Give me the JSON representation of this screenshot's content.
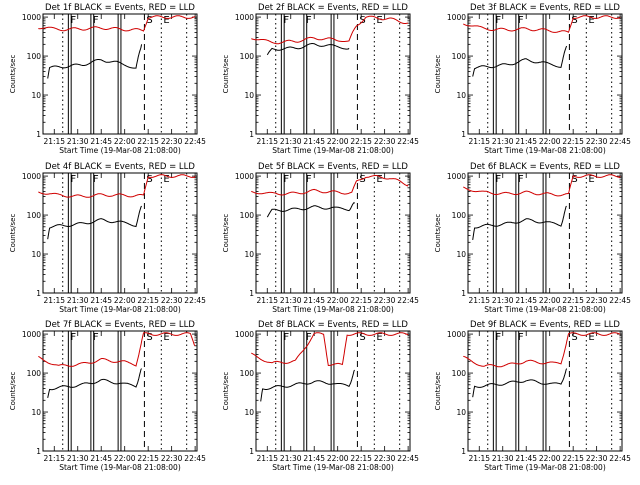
{
  "chart_data": [
    {
      "type": "line",
      "title": "Det 1f BLACK = Events, RED = LLD",
      "xlabel": "Start Time (19-Mar-08 21:08:00)",
      "ylabel": "Counts/sec",
      "x_ticks": [
        "21:15",
        "21:30",
        "21:45",
        "22:00",
        "22:15",
        "22:30",
        "22:45"
      ],
      "y_ticks": [
        "1",
        "10",
        "100",
        "1000"
      ],
      "ylim": [
        1,
        1200
      ],
      "y_scale": "log",
      "marker_labels": [
        "F",
        "F",
        "S",
        "E"
      ],
      "series": [
        {
          "color": "#000000",
          "values": [
            [
              21.18,
              25
            ],
            [
              21.2,
              50
            ],
            [
              21.4,
              55
            ],
            [
              21.55,
              60
            ],
            [
              21.75,
              80
            ],
            [
              21.95,
              65
            ],
            [
              22.12,
              50
            ],
            [
              22.18,
              200
            ]
          ]
        },
        {
          "color": "#d00000",
          "values": [
            [
              21.08,
              550
            ],
            [
              21.3,
              480
            ],
            [
              21.55,
              500
            ],
            [
              21.75,
              530
            ],
            [
              22.0,
              480
            ],
            [
              22.2,
              460
            ],
            [
              22.25,
              1000
            ],
            [
              22.75,
              1000
            ]
          ]
        }
      ]
    },
    {
      "type": "line",
      "title": "Det 2f BLACK = Events, RED = LLD",
      "xlabel": "Start Time (19-Mar-08 21:08:00)",
      "ylabel": "Counts/sec",
      "x_ticks": [
        "21:15",
        "21:30",
        "21:45",
        "22:00",
        "22:15",
        "22:30",
        "22:45"
      ],
      "y_ticks": [
        "1",
        "10",
        "100",
        "1000"
      ],
      "ylim": [
        1,
        1200
      ],
      "y_scale": "log",
      "marker_labels": [
        "F",
        "F",
        "S",
        "E"
      ],
      "series": [
        {
          "color": "#000000",
          "values": [
            [
              21.25,
              100
            ],
            [
              21.3,
              150
            ],
            [
              21.55,
              160
            ],
            [
              21.75,
              200
            ],
            [
              21.95,
              180
            ],
            [
              22.12,
              160
            ]
          ]
        },
        {
          "color": "#d00000",
          "values": [
            [
              21.08,
              300
            ],
            [
              21.3,
              220
            ],
            [
              21.55,
              240
            ],
            [
              21.75,
              290
            ],
            [
              22.0,
              260
            ],
            [
              22.12,
              250
            ],
            [
              22.2,
              600
            ],
            [
              22.3,
              1000
            ],
            [
              22.55,
              900
            ],
            [
              22.75,
              700
            ]
          ]
        }
      ]
    },
    {
      "type": "line",
      "title": "Det 3f BLACK = Events, RED = LLD",
      "xlabel": "Start Time (19-Mar-08 21:08:00)",
      "ylabel": "Counts/sec",
      "x_ticks": [
        "21:15",
        "21:30",
        "21:45",
        "22:00",
        "22:15",
        "22:30",
        "22:45"
      ],
      "y_ticks": [
        "1",
        "10",
        "100",
        "1000"
      ],
      "ylim": [
        1,
        1200
      ],
      "y_scale": "log",
      "marker_labels": [
        "F",
        "F",
        "S",
        "E"
      ],
      "series": [
        {
          "color": "#000000",
          "values": [
            [
              21.18,
              30
            ],
            [
              21.2,
              50
            ],
            [
              21.4,
              55
            ],
            [
              21.55,
              60
            ],
            [
              21.75,
              80
            ],
            [
              21.95,
              65
            ],
            [
              22.12,
              55
            ],
            [
              22.18,
              180
            ]
          ]
        },
        {
          "color": "#d00000",
          "values": [
            [
              21.08,
              700
            ],
            [
              21.3,
              500
            ],
            [
              21.55,
              470
            ],
            [
              21.75,
              500
            ],
            [
              22.0,
              450
            ],
            [
              22.2,
              400
            ],
            [
              22.25,
              1000
            ],
            [
              22.75,
              1000
            ]
          ]
        }
      ]
    },
    {
      "type": "line",
      "title": "Det 4f BLACK = Events, RED = LLD",
      "xlabel": "Start Time (19-Mar-08 21:08:00)",
      "ylabel": "Counts/sec",
      "x_ticks": [
        "21:15",
        "21:30",
        "21:45",
        "22:00",
        "22:15",
        "22:30",
        "22:45"
      ],
      "y_ticks": [
        "1",
        "10",
        "100",
        "1000"
      ],
      "ylim": [
        1,
        1200
      ],
      "y_scale": "log",
      "marker_labels": [
        "F",
        "F",
        "S",
        "E"
      ],
      "series": [
        {
          "color": "#000000",
          "values": [
            [
              21.18,
              25
            ],
            [
              21.2,
              50
            ],
            [
              21.4,
              55
            ],
            [
              21.55,
              60
            ],
            [
              21.75,
              75
            ],
            [
              21.95,
              65
            ],
            [
              22.12,
              55
            ],
            [
              22.18,
              170
            ]
          ]
        },
        {
          "color": "#d00000",
          "values": [
            [
              21.08,
              400
            ],
            [
              21.3,
              320
            ],
            [
              21.55,
              300
            ],
            [
              21.75,
              330
            ],
            [
              22.0,
              320
            ],
            [
              22.2,
              310
            ],
            [
              22.25,
              1000
            ],
            [
              22.75,
              1000
            ]
          ]
        }
      ]
    },
    {
      "type": "line",
      "title": "Det 5f BLACK = Events, RED = LLD",
      "xlabel": "Start Time (19-Mar-08 21:08:00)",
      "ylabel": "Counts/sec",
      "x_ticks": [
        "21:15",
        "21:30",
        "21:45",
        "22:00",
        "22:15",
        "22:30",
        "22:45"
      ],
      "y_ticks": [
        "1",
        "10",
        "100",
        "1000"
      ],
      "ylim": [
        1,
        1200
      ],
      "y_scale": "log",
      "marker_labels": [
        "F",
        "F",
        "S",
        "E"
      ],
      "series": [
        {
          "color": "#000000",
          "values": [
            [
              21.25,
              90
            ],
            [
              21.3,
              130
            ],
            [
              21.55,
              140
            ],
            [
              21.75,
              160
            ],
            [
              21.95,
              150
            ],
            [
              22.12,
              140
            ],
            [
              22.18,
              200
            ]
          ]
        },
        {
          "color": "#d00000",
          "values": [
            [
              21.08,
              400
            ],
            [
              21.3,
              350
            ],
            [
              21.55,
              360
            ],
            [
              21.75,
              420
            ],
            [
              22.0,
              380
            ],
            [
              22.15,
              370
            ],
            [
              22.2,
              700
            ],
            [
              22.3,
              1000
            ],
            [
              22.55,
              900
            ],
            [
              22.75,
              600
            ]
          ]
        }
      ]
    },
    {
      "type": "line",
      "title": "Det 6f BLACK = Events, RED = LLD",
      "xlabel": "Start Time (19-Mar-08 21:08:00)",
      "ylabel": "Counts/sec",
      "x_ticks": [
        "21:15",
        "21:30",
        "21:45",
        "22:00",
        "22:15",
        "22:30",
        "22:45"
      ],
      "y_ticks": [
        "1",
        "10",
        "100",
        "1000"
      ],
      "ylim": [
        1,
        1200
      ],
      "y_scale": "log",
      "marker_labels": [
        "F",
        "F",
        "S",
        "E"
      ],
      "series": [
        {
          "color": "#000000",
          "values": [
            [
              21.18,
              25
            ],
            [
              21.2,
              50
            ],
            [
              21.4,
              55
            ],
            [
              21.55,
              60
            ],
            [
              21.75,
              75
            ],
            [
              21.95,
              65
            ],
            [
              22.12,
              55
            ],
            [
              22.18,
              170
            ]
          ]
        },
        {
          "color": "#d00000",
          "values": [
            [
              21.08,
              500
            ],
            [
              21.3,
              380
            ],
            [
              21.55,
              350
            ],
            [
              21.75,
              380
            ],
            [
              22.0,
              340
            ],
            [
              22.2,
              330
            ],
            [
              22.25,
              1000
            ],
            [
              22.75,
              1000
            ]
          ]
        }
      ]
    },
    {
      "type": "line",
      "title": "Det 7f BLACK = Events, RED = LLD",
      "xlabel": "Start Time (19-Mar-08 21:08:00)",
      "ylabel": "Counts/sec",
      "x_ticks": [
        "21:15",
        "21:30",
        "21:45",
        "22:00",
        "22:15",
        "22:30",
        "22:45"
      ],
      "y_ticks": [
        "1",
        "10",
        "100",
        "1000"
      ],
      "ylim": [
        1,
        1200
      ],
      "y_scale": "log",
      "marker_labels": [
        "F",
        "F",
        "S",
        "E"
      ],
      "series": [
        {
          "color": "#000000",
          "values": [
            [
              21.18,
              25
            ],
            [
              21.2,
              40
            ],
            [
              21.4,
              45
            ],
            [
              21.55,
              50
            ],
            [
              21.75,
              65
            ],
            [
              21.95,
              55
            ],
            [
              22.12,
              45
            ],
            [
              22.18,
              130
            ]
          ]
        },
        {
          "color": "#d00000",
          "values": [
            [
              21.08,
              250
            ],
            [
              21.3,
              150
            ],
            [
              21.55,
              170
            ],
            [
              21.75,
              220
            ],
            [
              22.0,
              190
            ],
            [
              22.12,
              160
            ],
            [
              22.2,
              1000
            ],
            [
              22.7,
              1000
            ],
            [
              22.75,
              500
            ]
          ]
        }
      ]
    },
    {
      "type": "line",
      "title": "Det 8f BLACK = Events, RED = LLD",
      "xlabel": "Start Time (19-Mar-08 21:08:00)",
      "ylabel": "Counts/sec",
      "x_ticks": [
        "21:15",
        "21:30",
        "21:45",
        "22:00",
        "22:15",
        "22:30",
        "22:45"
      ],
      "y_ticks": [
        "1",
        "10",
        "100",
        "1000"
      ],
      "ylim": [
        1,
        1200
      ],
      "y_scale": "log",
      "marker_labels": [
        "F",
        "F",
        "S",
        "E"
      ],
      "series": [
        {
          "color": "#000000",
          "values": [
            [
              21.18,
              20
            ],
            [
              21.2,
              40
            ],
            [
              21.4,
              45
            ],
            [
              21.55,
              50
            ],
            [
              21.75,
              60
            ],
            [
              21.95,
              55
            ],
            [
              22.12,
              45
            ],
            [
              22.18,
              120
            ]
          ]
        },
        {
          "color": "#d00000",
          "values": [
            [
              21.08,
              300
            ],
            [
              21.3,
              180
            ],
            [
              21.55,
              200
            ],
            [
              21.75,
              1000
            ],
            [
              21.85,
              1000
            ],
            [
              21.9,
              170
            ],
            [
              22.05,
              160
            ],
            [
              22.1,
              1000
            ],
            [
              22.75,
              1000
            ]
          ]
        }
      ]
    },
    {
      "type": "line",
      "title": "Det 9f BLACK = Events, RED = LLD",
      "xlabel": "Start Time (19-Mar-08 21:08:00)",
      "ylabel": "Counts/sec",
      "x_ticks": [
        "21:15",
        "21:30",
        "21:45",
        "22:00",
        "22:15",
        "22:30",
        "22:45"
      ],
      "y_ticks": [
        "1",
        "10",
        "100",
        "1000"
      ],
      "ylim": [
        1,
        1200
      ],
      "y_scale": "log",
      "marker_labels": [
        "F",
        "F",
        "S",
        "E"
      ],
      "series": [
        {
          "color": "#000000",
          "values": [
            [
              21.18,
              25
            ],
            [
              21.2,
              45
            ],
            [
              21.4,
              50
            ],
            [
              21.55,
              55
            ],
            [
              21.75,
              65
            ],
            [
              21.95,
              55
            ],
            [
              22.12,
              50
            ],
            [
              22.18,
              130
            ]
          ]
        },
        {
          "color": "#d00000",
          "values": [
            [
              21.08,
              250
            ],
            [
              21.3,
              150
            ],
            [
              21.55,
              160
            ],
            [
              21.75,
              200
            ],
            [
              22.0,
              180
            ],
            [
              22.12,
              170
            ],
            [
              22.2,
              1000
            ],
            [
              22.75,
              1000
            ]
          ]
        }
      ]
    }
  ]
}
